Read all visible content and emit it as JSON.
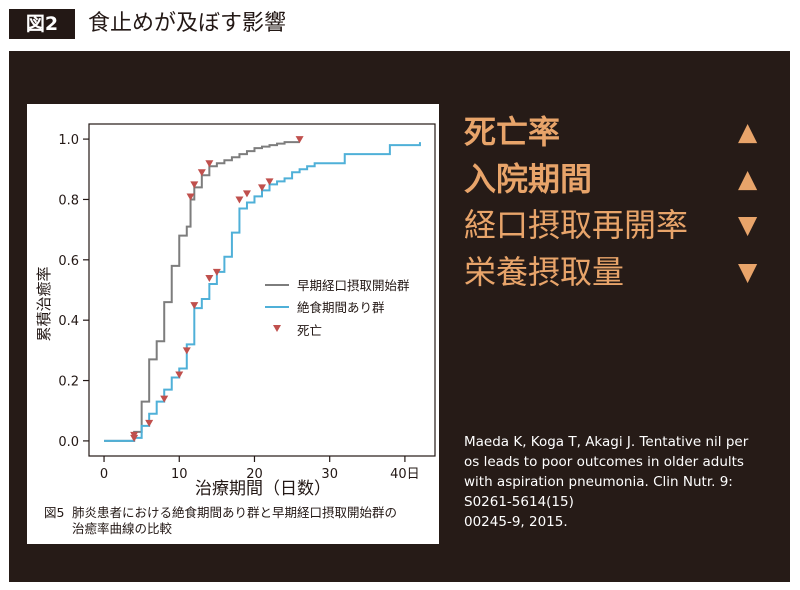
{
  "header": {
    "badge": "図2",
    "title": "食止めが及ぼす影響"
  },
  "effects": [
    {
      "label": "死亡率",
      "arrow": "▲",
      "bold": true
    },
    {
      "label": "入院期間",
      "arrow": "▲",
      "bold": true
    },
    {
      "label": "経口摂取再開率",
      "arrow": "▼",
      "bold": false
    },
    {
      "label": "栄養摂取量",
      "arrow": "▼",
      "bold": false
    }
  ],
  "reference": {
    "line1": "Maeda K, Koga T, Akagi J. Tentative nil per",
    "line2": "os leads to poor outcomes in older adults",
    "line3": "with aspiration pneumonia. Clin Nutr. 9:",
    "line4": "S0261-5614(15)",
    "line5": "00245-9, 2015."
  },
  "caption": {
    "number": "図5",
    "line1": "肺炎患者における絶食期間あり群と早期経口摂取開始群の",
    "line2": "治癒率曲線の比較"
  },
  "colors": {
    "early": "#7d7d7d",
    "fasting": "#4fb0d8",
    "death": "#c0504d",
    "accent": "#e8a46a"
  },
  "chart_data": {
    "type": "line",
    "title": "",
    "xlabel": "治療期間（日数）",
    "ylabel": "累積治癒率",
    "xlim": [
      -2,
      44
    ],
    "ylim": [
      -0.05,
      1.05
    ],
    "xticks": [
      0,
      10,
      20,
      30,
      40
    ],
    "xtick_labels": [
      "0",
      "10",
      "20",
      "30",
      "40日"
    ],
    "yticks": [
      0.0,
      0.2,
      0.4,
      0.6,
      0.8,
      1.0
    ],
    "ytick_labels": [
      "0.0",
      "0.2",
      "0.4",
      "0.6",
      "0.8",
      "1.0"
    ],
    "legend": {
      "placement": "center-right"
    },
    "series": [
      {
        "name": "早期経口摂取開始群",
        "style": "step",
        "x": [
          0,
          4,
          5,
          6,
          7,
          8,
          9,
          10,
          11,
          11.5,
          12,
          13,
          14,
          15,
          16,
          17,
          18,
          19,
          20,
          21,
          22,
          23,
          24,
          25,
          26
        ],
        "y": [
          0.0,
          0.03,
          0.13,
          0.27,
          0.33,
          0.46,
          0.58,
          0.68,
          0.71,
          0.8,
          0.84,
          0.88,
          0.91,
          0.92,
          0.93,
          0.94,
          0.95,
          0.96,
          0.97,
          0.975,
          0.98,
          0.985,
          0.99,
          0.99,
          0.99
        ]
      },
      {
        "name": "絶食期間あり群",
        "style": "step",
        "x": [
          0,
          4,
          5,
          6,
          7,
          8,
          9,
          10,
          11,
          12,
          13,
          14,
          15,
          16,
          17,
          18,
          19,
          20,
          21,
          22,
          23,
          24,
          25,
          26,
          27,
          28,
          32,
          38,
          42
        ],
        "y": [
          0.0,
          0.01,
          0.05,
          0.09,
          0.13,
          0.17,
          0.21,
          0.24,
          0.32,
          0.44,
          0.47,
          0.52,
          0.56,
          0.61,
          0.69,
          0.77,
          0.79,
          0.81,
          0.83,
          0.85,
          0.86,
          0.87,
          0.89,
          0.9,
          0.91,
          0.92,
          0.95,
          0.98,
          0.99
        ]
      }
    ],
    "deaths_label": "死亡",
    "deaths": [
      {
        "series": 0,
        "points": [
          [
            4,
            0.0
          ],
          [
            11.5,
            0.8
          ],
          [
            12,
            0.84
          ],
          [
            13,
            0.88
          ],
          [
            14,
            0.91
          ],
          [
            26,
            0.99
          ]
        ]
      },
      {
        "series": 1,
        "points": [
          [
            4,
            0.01
          ],
          [
            6,
            0.05
          ],
          [
            8,
            0.13
          ],
          [
            10,
            0.21
          ],
          [
            11,
            0.29
          ],
          [
            12,
            0.44
          ],
          [
            14,
            0.53
          ],
          [
            15,
            0.55
          ],
          [
            18,
            0.79
          ],
          [
            19,
            0.81
          ],
          [
            21,
            0.83
          ],
          [
            22,
            0.85
          ]
        ]
      }
    ]
  }
}
